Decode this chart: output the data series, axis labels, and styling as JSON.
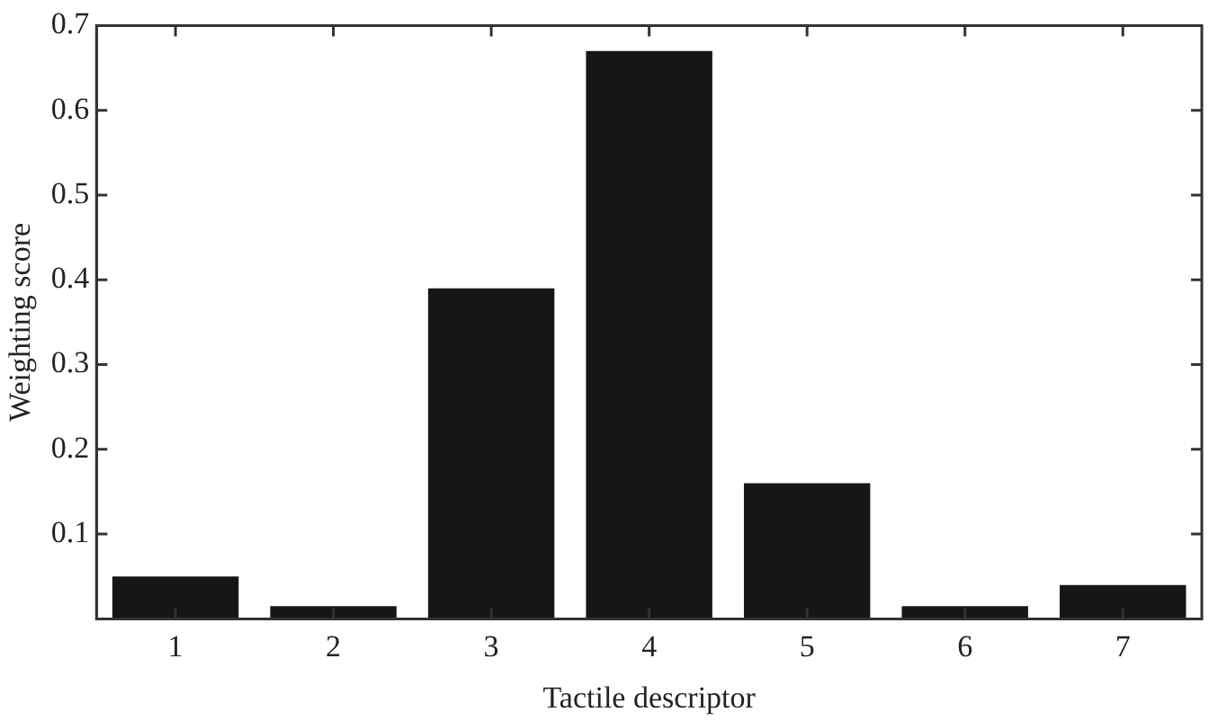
{
  "chart_data": {
    "type": "bar",
    "xlabel": "Tactile descriptor",
    "ylabel": "Weighting score",
    "categories": [
      "1",
      "2",
      "3",
      "4",
      "5",
      "6",
      "7"
    ],
    "values": [
      0.05,
      0.015,
      0.39,
      0.67,
      0.16,
      0.015,
      0.04
    ],
    "color": "#161616",
    "ylim": [
      0,
      0.7
    ],
    "yticks": [
      0.1,
      0.2,
      0.3,
      0.4,
      0.5,
      0.6,
      0.7
    ],
    "grid": false,
    "legend": false
  }
}
